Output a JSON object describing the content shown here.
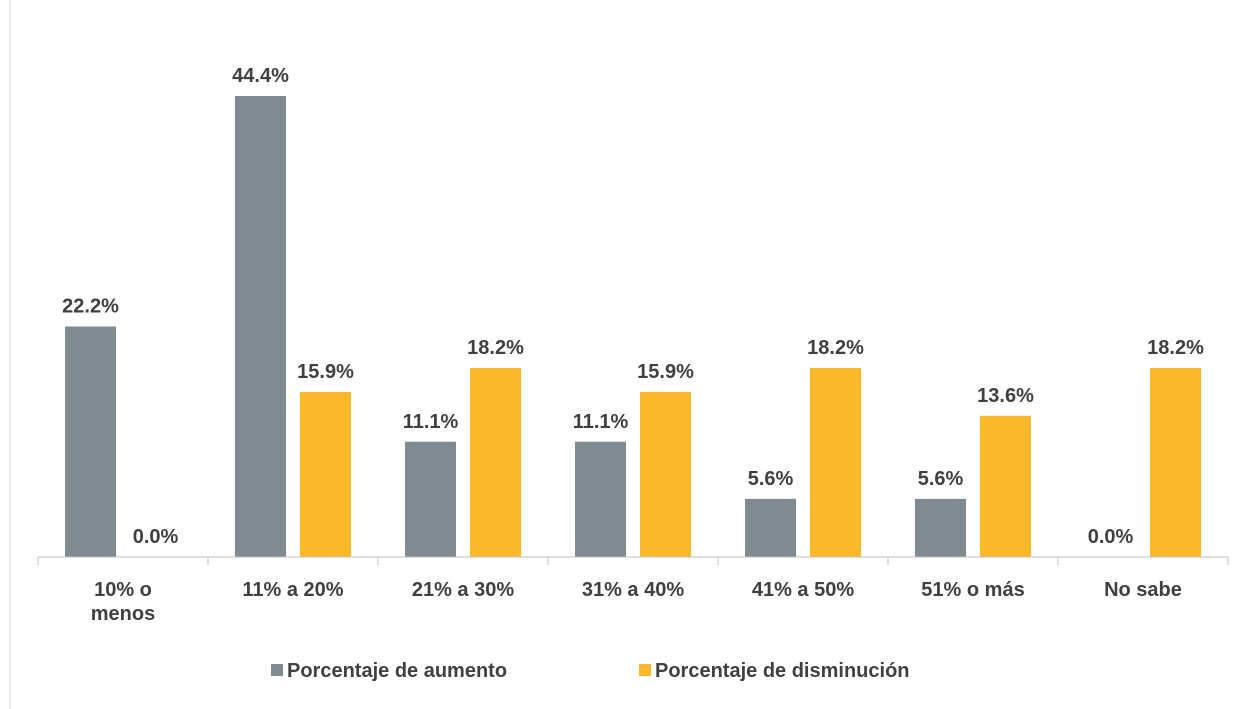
{
  "chart_data": {
    "type": "bar",
    "categories": [
      "10% o menos",
      "11% a 20%",
      "21% a 30%",
      "31% a 40%",
      "41% a 50%",
      "51% o más",
      "No sabe"
    ],
    "series": [
      {
        "name": "Porcentaje de aumento",
        "color": "#7f8a91",
        "values": [
          22.2,
          44.4,
          11.1,
          11.1,
          5.6,
          5.6,
          0.0
        ],
        "value_labels": [
          "22.2%",
          "44.4%",
          "11.1%",
          "11.1%",
          "5.6%",
          "5.6%",
          "0.0%"
        ]
      },
      {
        "name": "Porcentaje de disminución",
        "color": "#fbb829",
        "values": [
          0.0,
          15.9,
          18.2,
          15.9,
          18.2,
          13.6,
          18.2
        ],
        "value_labels": [
          "0.0%",
          "15.9%",
          "18.2%",
          "15.9%",
          "18.2%",
          "13.6%",
          "18.2%"
        ]
      }
    ],
    "legend": "bottom"
  }
}
